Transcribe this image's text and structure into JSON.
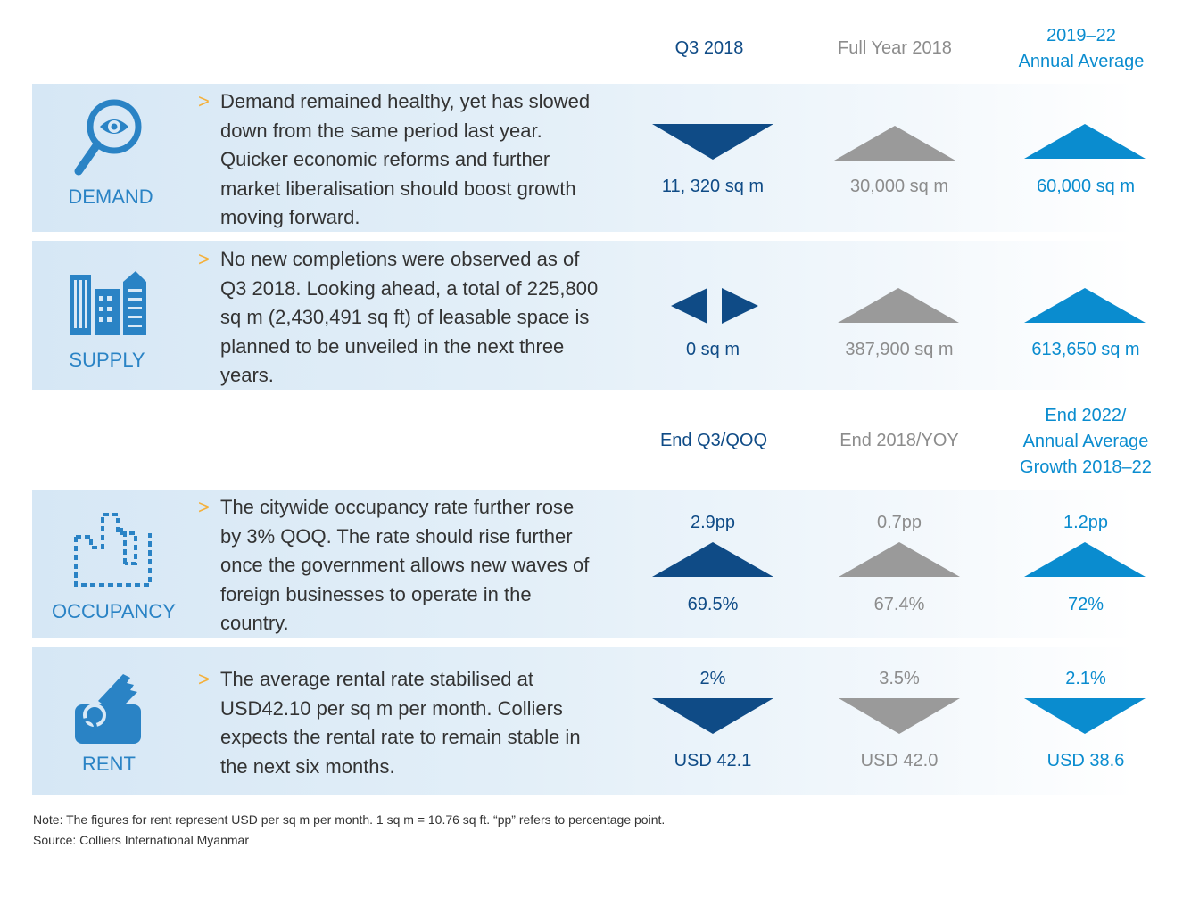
{
  "headers_top": [
    "Q3 2018",
    "Full Year 2018",
    "2019–22\nAnnual Average"
  ],
  "headers_bottom": [
    "End Q3/QOQ",
    "End 2018/YOY",
    "End 2022/\nAnnual Average\nGrowth 2018–22"
  ],
  "rows": [
    {
      "category": "DEMAND",
      "icon": "magnifier-eye-icon",
      "marker": ">",
      "description": "Demand remained healthy, yet has slowed down from the same period last year. Quicker economic reforms and further market liberalisation should boost growth moving forward.",
      "cols": [
        {
          "arrow": "down",
          "value": "11, 320 sq m"
        },
        {
          "arrow": "up",
          "value": "30,000 sq m"
        },
        {
          "arrow": "up",
          "value": "60,000 sq m"
        }
      ]
    },
    {
      "category": "SUPPLY",
      "icon": "buildings-icon",
      "marker": ">",
      "description": "No new completions were observed as of Q3 2018. Looking ahead, a total of 225,800 sq m (2,430,491 sq ft) of leasable space is planned to be unveiled in the next three years.",
      "cols": [
        {
          "arrow": "neutral",
          "value": "0 sq m"
        },
        {
          "arrow": "up",
          "value": "387,900 sq m"
        },
        {
          "arrow": "up",
          "value": "613,650 sq m"
        }
      ]
    },
    {
      "category": "OCCUPANCY",
      "icon": "occupancy-outline-icon",
      "marker": ">",
      "description": "The citywide occupancy rate further rose by 3% QOQ. The rate should rise further once the government allows new waves of foreign businesses to operate in the country.",
      "cols": [
        {
          "arrow": "up",
          "change": "2.9pp",
          "value": "69.5%"
        },
        {
          "arrow": "up",
          "change": "0.7pp",
          "value": "67.4%"
        },
        {
          "arrow": "up",
          "change": "1.2pp",
          "value": "72%"
        }
      ]
    },
    {
      "category": "RENT",
      "icon": "key-icon",
      "marker": ">",
      "description": "The average rental rate stabilised at USD42.10 per sq m per month. Colliers expects the rental rate to remain stable in the next six months.",
      "cols": [
        {
          "arrow": "down",
          "change": "2%",
          "value": "USD 42.1"
        },
        {
          "arrow": "down",
          "change": "3.5%",
          "value": "USD 42.0"
        },
        {
          "arrow": "down",
          "change": "2.1%",
          "value": "USD 38.6"
        }
      ]
    }
  ],
  "note": "Note: The figures for rent represent USD per sq m per month. 1 sq m = 10.76 sq ft. “pp” refers to percentage point.",
  "source": "Source: Colliers International Myanmar",
  "colors": {
    "dark": "#0f4b86",
    "gray": "#8c8c8c",
    "light": "#0a8ccf",
    "accent": "#f4b03a",
    "icon": "#2a83c5"
  }
}
